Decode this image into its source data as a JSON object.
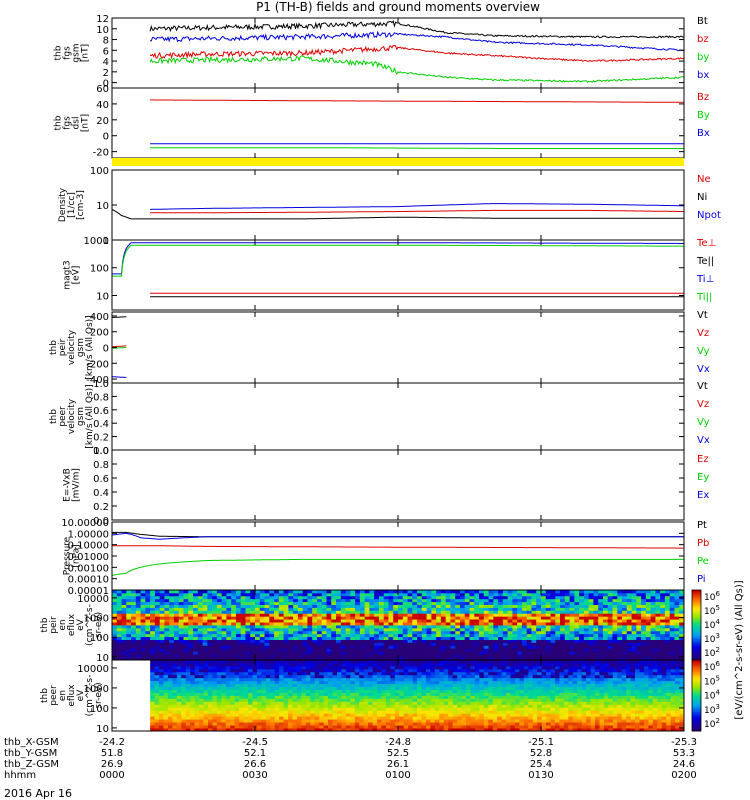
{
  "title": "P1 (TH-B) fields and ground moments overview",
  "date_label": "2016 Apr 16",
  "time_axis": {
    "x_range": [
      0,
      120
    ],
    "tick_minutes": [
      0,
      30,
      60,
      90,
      120
    ],
    "rows": [
      {
        "label": "thb_X-GSM",
        "values": [
          "-24.2",
          "-24.5",
          "-24.8",
          "-25.1",
          "-25.3"
        ]
      },
      {
        "label": "thb_Y-GSM",
        "values": [
          "51.8",
          "52.1",
          "52.5",
          "52.8",
          "53.3"
        ]
      },
      {
        "label": "thb_Z-GSM",
        "values": [
          "26.9",
          "26.6",
          "26.1",
          "25.4",
          "24.6"
        ]
      },
      {
        "label": "hhmm",
        "values": [
          "0000",
          "0030",
          "0100",
          "0130",
          "0200"
        ]
      }
    ]
  },
  "colors": {
    "black": "#000000",
    "red": "#e00000",
    "green": "#00d000",
    "blue": "#0000e0",
    "yellow": "#ffee00"
  },
  "chart_data": [
    {
      "id": "fgs_gsm",
      "type": "line",
      "scale": "linear",
      "ylim": [
        -1,
        12
      ],
      "ylabel_lines": [
        "thb",
        "fgs",
        "gsm",
        "[nT]"
      ],
      "yticks": [
        0,
        2,
        4,
        6,
        8,
        10,
        12
      ],
      "ytick_labels": [
        "0",
        "2",
        "4",
        "6",
        "8",
        "10",
        "12"
      ],
      "legend": [
        {
          "text": "Bt",
          "color": "#000000"
        },
        {
          "text": "bz",
          "color": "#e00000"
        },
        {
          "text": "by",
          "color": "#00d000"
        },
        {
          "text": "bx",
          "color": "#0000e0"
        }
      ],
      "series": [
        {
          "color": "#000000",
          "x": [
            8,
            20,
            40,
            60,
            70,
            80,
            100,
            120
          ],
          "y": [
            10,
            10.2,
            10.5,
            11,
            9.3,
            8.7,
            8.5,
            8.5
          ]
        },
        {
          "color": "#0000e0",
          "x": [
            8,
            20,
            40,
            60,
            70,
            80,
            100,
            120
          ],
          "y": [
            8,
            8.2,
            8.5,
            9,
            8.5,
            7.5,
            7,
            6
          ]
        },
        {
          "color": "#e00000",
          "x": [
            8,
            20,
            40,
            60,
            70,
            80,
            100,
            120
          ],
          "y": [
            5,
            5.3,
            5.5,
            6.5,
            5.5,
            5,
            4,
            4.5
          ]
        },
        {
          "color": "#00d000",
          "x": [
            8,
            20,
            40,
            55,
            60,
            70,
            80,
            100,
            120
          ],
          "y": [
            4,
            4.2,
            4.5,
            3.5,
            2,
            1,
            0.5,
            0.2,
            1
          ]
        }
      ]
    },
    {
      "id": "fgs_dsl",
      "type": "line",
      "scale": "linear",
      "ylim": [
        -28,
        60
      ],
      "ylabel_lines": [
        "thb",
        "fgs",
        "dsl",
        "[nT]"
      ],
      "yticks": [
        -20,
        0,
        20,
        40,
        60
      ],
      "ytick_labels": [
        "-20",
        "0",
        "20",
        "40",
        "60"
      ],
      "legend": [
        {
          "text": "Bz",
          "color": "#e00000"
        },
        {
          "text": "By",
          "color": "#00d000"
        },
        {
          "text": "Bx",
          "color": "#0000e0"
        }
      ],
      "series": [
        {
          "color": "#e00000",
          "x": [
            8,
            40,
            80,
            120
          ],
          "y": [
            45,
            44,
            43,
            42
          ]
        },
        {
          "color": "#0000e0",
          "x": [
            8,
            40,
            80,
            120
          ],
          "y": [
            -10,
            -10,
            -10,
            -10
          ]
        },
        {
          "color": "#00d000",
          "x": [
            8,
            40,
            80,
            120
          ],
          "y": [
            -15,
            -15,
            -16,
            -16
          ]
        }
      ]
    },
    {
      "id": "density",
      "type": "line",
      "scale": "log",
      "ylim": [
        1,
        100
      ],
      "ylabel_lines": [
        "Density",
        "[1/cc]",
        "[cm-3]"
      ],
      "yticks": [
        1,
        10,
        100
      ],
      "ytick_labels": [
        "1",
        "10",
        "100"
      ],
      "legend": [
        {
          "text": "Ne",
          "color": "#e00000"
        },
        {
          "text": "Ni",
          "color": "#000000"
        },
        {
          "text": "Npot",
          "color": "#0000e0"
        }
      ],
      "series": [
        {
          "color": "#0000e0",
          "x": [
            8,
            20,
            40,
            60,
            80,
            100,
            120
          ],
          "y": [
            7.5,
            8,
            8.5,
            9,
            11,
            10.5,
            9.5
          ]
        },
        {
          "color": "#e00000",
          "x": [
            8,
            20,
            40,
            60,
            80,
            100,
            120
          ],
          "y": [
            6,
            6,
            6.2,
            6.5,
            7,
            7,
            6.5
          ]
        },
        {
          "color": "#000000",
          "x": [
            0,
            2,
            4,
            8,
            20,
            40,
            60,
            80,
            100,
            120
          ],
          "y": [
            7.5,
            5,
            4,
            4,
            4,
            4,
            4.5,
            4.2,
            4.2,
            4.2
          ]
        }
      ]
    },
    {
      "id": "temperature",
      "type": "line",
      "scale": "log",
      "ylim": [
        3,
        1000
      ],
      "ylabel_lines": [
        "magt3",
        "[eV]"
      ],
      "yticks": [
        10,
        100,
        1000
      ],
      "ytick_labels": [
        "10",
        "100",
        "1000"
      ],
      "legend": [
        {
          "text": "Te⊥",
          "color": "#e00000"
        },
        {
          "text": "Te||",
          "color": "#000000"
        },
        {
          "text": "Ti⊥",
          "color": "#0000e0"
        },
        {
          "text": "Ti||",
          "color": "#00d000"
        }
      ],
      "series": [
        {
          "color": "#0000e0",
          "x": [
            0,
            2,
            3,
            4,
            20,
            60,
            120
          ],
          "y": [
            60,
            60,
            500,
            800,
            800,
            800,
            750
          ]
        },
        {
          "color": "#00d000",
          "x": [
            0,
            2,
            3,
            4,
            20,
            60,
            120
          ],
          "y": [
            50,
            50,
            400,
            650,
            650,
            650,
            600
          ]
        },
        {
          "color": "#e00000",
          "x": [
            8,
            40,
            80,
            120
          ],
          "y": [
            12,
            12,
            12,
            12
          ]
        },
        {
          "color": "#000000",
          "x": [
            8,
            40,
            80,
            120
          ],
          "y": [
            9,
            9,
            9,
            9
          ]
        }
      ]
    },
    {
      "id": "peir_velocity",
      "type": "line",
      "scale": "linear",
      "ylim": [
        -450,
        450
      ],
      "ylabel_lines": [
        "thb",
        "peir",
        "velocity",
        "gsm",
        "[km/s (All Qs)]"
      ],
      "yticks": [
        -400,
        -200,
        0,
        200,
        400
      ],
      "ytick_labels": [
        "-400",
        "-200",
        "0",
        "200",
        "400"
      ],
      "legend": [
        {
          "text": "Vt",
          "color": "#000000"
        },
        {
          "text": "Vz",
          "color": "#e00000"
        },
        {
          "text": "Vy",
          "color": "#00d000"
        },
        {
          "text": "Vx",
          "color": "#0000e0"
        }
      ],
      "series": [
        {
          "color": "#000000",
          "x": [
            0,
            3
          ],
          "y": [
            380,
            390
          ]
        },
        {
          "color": "#e00000",
          "x": [
            0,
            3
          ],
          "y": [
            10,
            20
          ]
        },
        {
          "color": "#00d000",
          "x": [
            0,
            3
          ],
          "y": [
            -10,
            0
          ]
        },
        {
          "color": "#0000e0",
          "x": [
            0,
            3
          ],
          "y": [
            -370,
            -380
          ]
        }
      ]
    },
    {
      "id": "peer_velocity",
      "type": "line",
      "scale": "linear",
      "ylim": [
        0,
        1
      ],
      "ylabel_lines": [
        "thb",
        "peer",
        "velocity",
        "gsm",
        "[km/s (All Qs)]"
      ],
      "yticks": [
        0,
        0.2,
        0.4,
        0.6,
        0.8,
        1.0
      ],
      "ytick_labels": [
        "0.0",
        "0.2",
        "0.4",
        "0.6",
        "0.8",
        "1.0"
      ],
      "legend": [
        {
          "text": "Vt",
          "color": "#000000"
        },
        {
          "text": "Vz",
          "color": "#e00000"
        },
        {
          "text": "Vy",
          "color": "#00d000"
        },
        {
          "text": "Vx",
          "color": "#0000e0"
        }
      ],
      "series": []
    },
    {
      "id": "efield",
      "type": "line",
      "scale": "linear",
      "ylim": [
        0,
        1
      ],
      "ylabel_lines": [
        "E=-VxB",
        "[mV/m]"
      ],
      "yticks": [
        0,
        0.2,
        0.4,
        0.6,
        0.8,
        1.0
      ],
      "ytick_labels": [
        "0.0",
        "0.2",
        "0.4",
        "0.6",
        "0.8",
        "1.0"
      ],
      "legend": [
        {
          "text": "Ez",
          "color": "#e00000"
        },
        {
          "text": "Ey",
          "color": "#00d000"
        },
        {
          "text": "Ex",
          "color": "#0000e0"
        }
      ],
      "series": []
    },
    {
      "id": "pressure",
      "type": "line",
      "scale": "log",
      "ylim": [
        1e-05,
        10
      ],
      "ylabel_lines": [
        "Pressure",
        "[nPa]"
      ],
      "yticks": [
        1e-05,
        0.0001,
        0.001,
        0.01,
        0.1,
        1,
        10
      ],
      "ytick_labels": [
        "0.00001",
        "0.00010",
        "0.00100",
        "0.01000",
        "0.10000",
        "1.00000",
        "10.00000"
      ],
      "legend": [
        {
          "text": "Pt",
          "color": "#000000"
        },
        {
          "text": "Pb",
          "color": "#e00000"
        },
        {
          "text": "Pe",
          "color": "#00d000"
        },
        {
          "text": "Pi",
          "color": "#0000e0"
        }
      ],
      "series": [
        {
          "color": "#000000",
          "x": [
            0,
            3,
            6,
            10,
            20,
            60,
            120
          ],
          "y": [
            1.2,
            1.2,
            0.8,
            0.55,
            0.5,
            0.5,
            0.5
          ]
        },
        {
          "color": "#0000e0",
          "x": [
            0,
            3,
            6,
            10,
            20,
            60,
            120
          ],
          "y": [
            0.7,
            1.0,
            0.4,
            0.3,
            0.5,
            0.5,
            0.5
          ]
        },
        {
          "color": "#e00000",
          "x": [
            0,
            5,
            10,
            20,
            60,
            120
          ],
          "y": [
            0.08,
            0.08,
            0.08,
            0.07,
            0.06,
            0.05
          ]
        },
        {
          "color": "#00d000",
          "x": [
            0,
            3,
            6,
            10,
            20,
            40,
            60,
            120
          ],
          "y": [
            0.0002,
            0.0003,
            0.001,
            0.002,
            0.004,
            0.005,
            0.005,
            0.005
          ]
        }
      ]
    },
    {
      "id": "peir_eflux",
      "type": "heatmap",
      "scale": "log",
      "ylim": [
        7,
        25000
      ],
      "ylabel_lines": [
        "thb",
        "peir",
        "en",
        "eflux",
        "eV",
        "(cm^2-s-",
        "sr-eV)"
      ],
      "yticks": [
        10,
        100,
        1000,
        10000
      ],
      "ytick_labels": [
        "10",
        "100",
        "1000",
        "10000"
      ],
      "colorbar": {
        "labels": [
          "10^2",
          "10^3",
          "10^4",
          "10^5",
          "10^6"
        ]
      },
      "start_x": 0
    },
    {
      "id": "peer_eflux",
      "type": "heatmap",
      "scale": "log",
      "ylim": [
        7,
        25000
      ],
      "ylabel_lines": [
        "thb",
        "peer",
        "en",
        "eflux",
        "eV",
        "(cm^2-s-",
        "sr-eV)"
      ],
      "yticks": [
        10,
        100,
        1000,
        10000
      ],
      "ytick_labels": [
        "10",
        "100",
        "1000",
        "10000"
      ],
      "colorbar": {
        "labels": [
          "10^2",
          "10^3",
          "10^4",
          "10^5",
          "10^6"
        ]
      },
      "start_x": 8
    }
  ],
  "colorbar_title": "[eV/(cm^2-s-sr-eV) (All Qs)]"
}
